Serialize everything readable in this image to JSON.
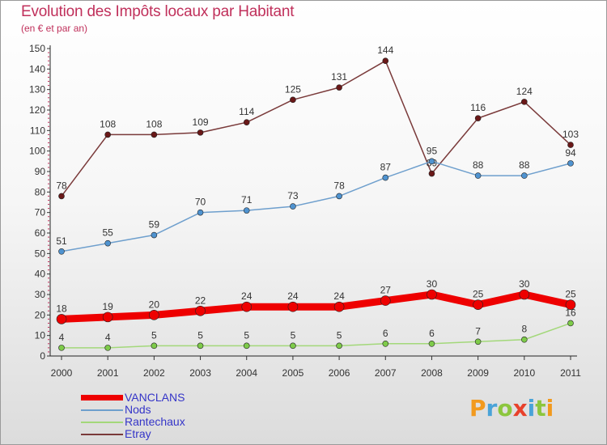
{
  "title": "Evolution des Impôts locaux par Habitant",
  "subtitle": "(en € et par an)",
  "logo": {
    "text": "Proxiti",
    "colors": [
      "#f29a1e",
      "#4aa3d8",
      "#8cc63e",
      "#e8412b"
    ]
  },
  "chart_data": {
    "type": "line",
    "title": "Evolution des Impôts locaux par Habitant",
    "subtitle": "(en € et par an)",
    "categories": [
      "2000",
      "2001",
      "2002",
      "2003",
      "2004",
      "2005",
      "2006",
      "2007",
      "2008",
      "2009",
      "2010",
      "2011"
    ],
    "ylim": [
      0,
      150
    ],
    "y_ticks": [
      0,
      10,
      20,
      30,
      40,
      50,
      60,
      70,
      80,
      90,
      100,
      110,
      120,
      130,
      140,
      150
    ],
    "grid": false,
    "legend_position": "bottom-left",
    "series": [
      {
        "name": "VANCLANS",
        "color": "#ee0000",
        "values": [
          18,
          19,
          20,
          22,
          24,
          24,
          24,
          27,
          30,
          25,
          30,
          25
        ]
      },
      {
        "name": "Nods",
        "color": "#6e9fcd",
        "values": [
          51,
          55,
          59,
          70,
          71,
          73,
          78,
          87,
          95,
          88,
          88,
          94
        ]
      },
      {
        "name": "Rantechaux",
        "color": "#a3d87a",
        "values": [
          4,
          4,
          5,
          5,
          5,
          5,
          5,
          6,
          6,
          7,
          8,
          16
        ]
      },
      {
        "name": "Etray",
        "color": "#7a3a3a",
        "values": [
          78,
          108,
          108,
          109,
          114,
          125,
          131,
          144,
          89,
          116,
          124,
          103
        ]
      }
    ]
  }
}
